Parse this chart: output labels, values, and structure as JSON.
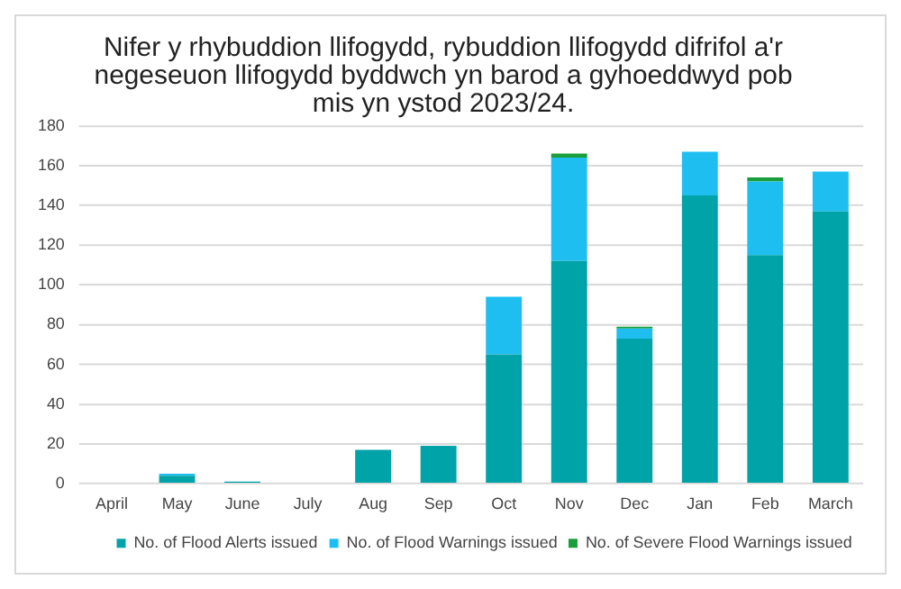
{
  "chart_data": {
    "type": "bar",
    "stacked": true,
    "title": "Nifer y rhybuddion llifogydd, rybuddion llifogydd difrifol a'r negeseuon llifogydd byddwch yn barod a gyhoeddwyd pob mis yn ystod 2023/24.",
    "categories": [
      "April",
      "May",
      "June",
      "July",
      "Aug",
      "Sep",
      "Oct",
      "Nov",
      "Dec",
      "Jan",
      "Feb",
      "March"
    ],
    "series": [
      {
        "name": "No. of Flood Alerts issued",
        "color": "#00a3a8",
        "values": [
          0,
          4,
          1,
          0,
          17,
          19,
          65,
          112,
          73,
          145,
          115,
          137
        ]
      },
      {
        "name": "No. of Flood Warnings issued",
        "color": "#1ebff0",
        "values": [
          0,
          1,
          0,
          0,
          0,
          0,
          29,
          52,
          5,
          22,
          37,
          20
        ]
      },
      {
        "name": "No. of Severe Flood Warnings issued",
        "color": "#1a9e3c",
        "values": [
          0,
          0,
          0,
          0,
          0,
          0,
          0,
          2,
          1,
          0,
          2,
          0
        ]
      }
    ],
    "ylim": [
      0,
      180
    ],
    "yticks": [
      0,
      20,
      40,
      60,
      80,
      100,
      120,
      140,
      160,
      180
    ],
    "grid": "y",
    "legend": "bottom"
  }
}
